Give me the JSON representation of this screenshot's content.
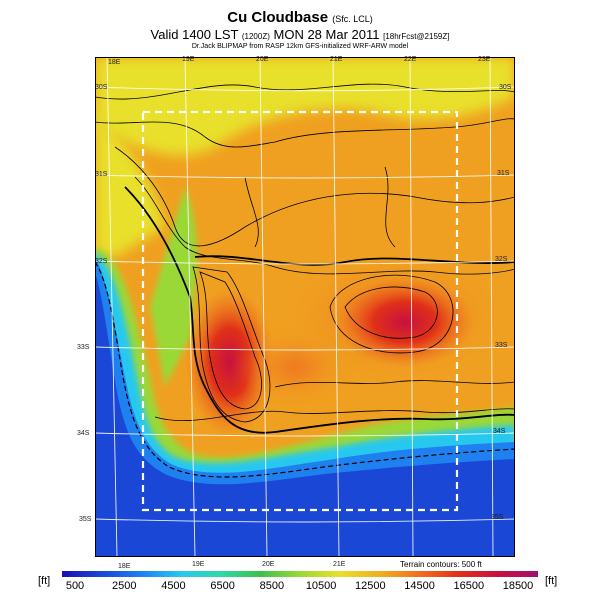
{
  "title": {
    "main": "Cu Cloudbase",
    "main_sub": "(Sfc. LCL)",
    "valid": "Valid 1400 LST",
    "valid_sub": "(1200Z)",
    "valid_rest": "MON 28 Mar 2011",
    "forecast": "[18hrFcst@2159Z]",
    "credit": "Dr.Jack BLIPMAP from RASP 12km GFS-initialized WRF-ARW model"
  },
  "map": {
    "top_lon_labels": [
      "18E",
      "19E",
      "20E",
      "21E",
      "22E",
      "23E"
    ],
    "bottom_lon_labels": [
      "18E",
      "19E",
      "20E",
      "21E"
    ],
    "lat_labels_left": [
      "30S",
      "31S",
      "32S",
      "33S",
      "34S",
      "35S"
    ],
    "lat_labels_right": [
      "30S",
      "31S",
      "32S",
      "33S",
      "34S",
      "35S"
    ],
    "terrain_note": "Terrain contours: 500 ft",
    "colors": {
      "ocean": "#1a47d6",
      "coast": "#2fa0f0",
      "green": "#3ec04a",
      "yellow": "#e8e02a",
      "orange": "#f0a020",
      "red": "#e03018",
      "hot": "#c81040"
    }
  },
  "colorbar": {
    "unit_left": "[ft]",
    "unit_right": "[ft]",
    "labels": [
      "500",
      "2500",
      "4500",
      "6500",
      "8500",
      "10500",
      "12500",
      "14500",
      "16500",
      "18500"
    ],
    "colors": [
      "#1a10b0",
      "#1a47d6",
      "#1f80f0",
      "#28c8f0",
      "#30d8a8",
      "#3ec04a",
      "#9ad838",
      "#e8e02a",
      "#f0b020",
      "#f07020",
      "#e03018",
      "#c81040",
      "#a01070"
    ]
  }
}
